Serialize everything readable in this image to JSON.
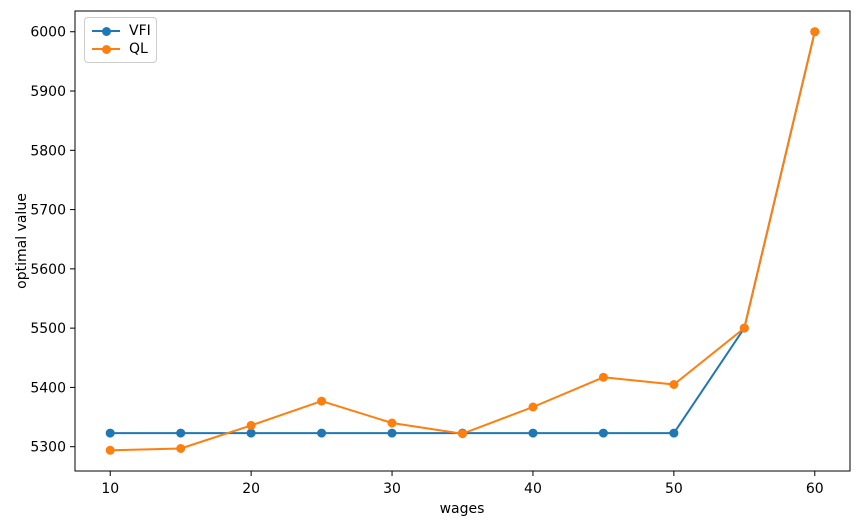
{
  "chart_data": {
    "type": "line",
    "title": "",
    "xlabel": "wages",
    "ylabel": "optimal value",
    "x": [
      10,
      15,
      20,
      25,
      30,
      35,
      40,
      45,
      50,
      55,
      60
    ],
    "series": [
      {
        "name": "VFI",
        "color": "#1f77b4",
        "values": [
          5323,
          5323,
          5323,
          5323,
          5323,
          5323,
          5323,
          5323,
          5323,
          5500,
          6000
        ]
      },
      {
        "name": "QL",
        "color": "#ff7f0e",
        "values": [
          5294,
          5297,
          5336,
          5377,
          5340,
          5322,
          5367,
          5417,
          5405,
          5500,
          6000
        ]
      }
    ],
    "xticks": [
      10,
      20,
      30,
      40,
      50,
      60
    ],
    "yticks": [
      5300,
      5400,
      5500,
      5600,
      5700,
      5800,
      5900,
      6000
    ],
    "xlim": [
      7.5,
      62.5
    ],
    "ylim": [
      5259,
      6035
    ],
    "grid": false,
    "legend_position": "upper left",
    "marker": "o",
    "background_color": "#ffffff",
    "axis_color": "#000000"
  }
}
